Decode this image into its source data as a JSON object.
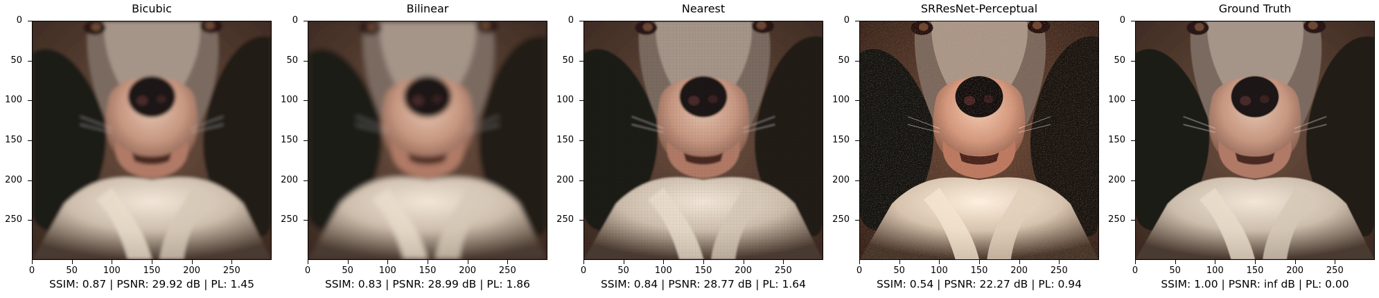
{
  "panels": [
    {
      "title": "Bicubic",
      "caption": "SSIM: 0.87 | PSNR: 29.92 dB | PL: 1.45",
      "filter": "blur-soft"
    },
    {
      "title": "Bilinear",
      "caption": "SSIM: 0.83 | PSNR: 28.99 dB | PL: 1.86",
      "filter": "blur-strong"
    },
    {
      "title": "Nearest",
      "caption": "SSIM: 0.84 | PSNR: 28.77 dB | PL: 1.64",
      "filter": "pixelated"
    },
    {
      "title": "SRResNet-Perceptual",
      "caption": "SSIM: 0.54 | PSNR: 22.27 dB | PL: 0.94",
      "filter": "sharp-textured"
    },
    {
      "title": "Ground Truth",
      "caption": "SSIM: 1.00 | PSNR: inf dB | PL: 0.00",
      "filter": "sharp"
    }
  ],
  "x_ticks": [
    "0",
    "50",
    "100",
    "150",
    "200",
    "250"
  ],
  "y_ticks": [
    "0",
    "50",
    "100",
    "150",
    "200",
    "250"
  ],
  "image_subject": "close-up of a spaniel dog's face against a brown background"
}
